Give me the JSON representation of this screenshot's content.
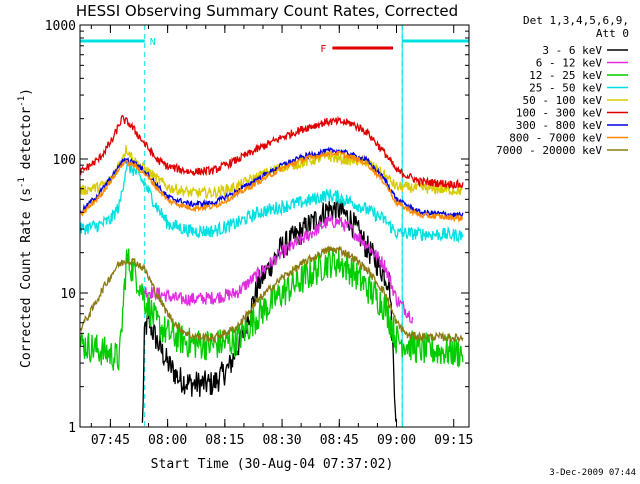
{
  "chart_data": {
    "type": "line",
    "title": "HESSI Observing Summary Count Rates, Corrected",
    "xlabel": "Start Time (30-Aug-04 07:37:02)",
    "ylabel_main": "Corrected Count Rate (s",
    "ylabel_exp1": "-1",
    "ylabel_mid": " detector",
    "ylabel_exp2": "-1",
    "ylabel_end": ")",
    "yscale": "log",
    "ylim": [
      1,
      1000
    ],
    "xlim": [
      7.6172,
      9.3167
    ],
    "yticks": [
      "1",
      "10",
      "100",
      "1000"
    ],
    "xticks": [
      "07:45",
      "08:00",
      "08:15",
      "08:30",
      "08:45",
      "09:00",
      "09:15"
    ],
    "legend_header": [
      "Det 1,3,4,5,6,9,",
      "Att 0"
    ],
    "footer_date": "3-Dec-2009 07:44",
    "night_label": "N",
    "flare_label": "F",
    "night_intervals": [
      [
        7.6172,
        7.9
      ],
      [
        9.025,
        9.3167
      ]
    ],
    "flare_interval": [
      8.72,
      8.985
    ],
    "series": [
      {
        "name": "3 - 6 keV",
        "color": "#000000",
        "noise": 0.1,
        "points": [
          [
            7.89,
            1.0
          ],
          [
            7.9,
            5.5
          ],
          [
            7.92,
            6.0
          ],
          [
            7.95,
            4.5
          ],
          [
            8.0,
            3.0
          ],
          [
            8.05,
            2.3
          ],
          [
            8.1,
            2.1
          ],
          [
            8.2,
            2.1
          ],
          [
            8.27,
            2.8
          ],
          [
            8.33,
            5
          ],
          [
            8.4,
            12
          ],
          [
            8.5,
            22
          ],
          [
            8.6,
            30
          ],
          [
            8.7,
            42
          ],
          [
            8.75,
            42
          ],
          [
            8.8,
            35
          ],
          [
            8.87,
            22
          ],
          [
            8.97,
            12
          ],
          [
            9.0,
            1.0
          ]
        ]
      },
      {
        "name": "6 - 12 keV",
        "color": "#e02de0",
        "noise": 0.05,
        "points": [
          [
            7.89,
            10.5
          ],
          [
            7.95,
            10.0
          ],
          [
            8.0,
            9.5
          ],
          [
            8.05,
            9.0
          ],
          [
            8.1,
            9.0
          ],
          [
            8.2,
            9.2
          ],
          [
            8.3,
            10
          ],
          [
            8.4,
            14
          ],
          [
            8.5,
            20
          ],
          [
            8.6,
            26
          ],
          [
            8.7,
            34
          ],
          [
            8.75,
            34
          ],
          [
            8.8,
            30
          ],
          [
            8.87,
            23
          ],
          [
            8.95,
            16
          ],
          [
            9.0,
            9
          ],
          [
            9.07,
            6.5
          ]
        ]
      },
      {
        "name": "12 - 25 keV",
        "color": "#00cc00",
        "noise": 0.12,
        "points": [
          [
            7.62,
            4.2
          ],
          [
            7.75,
            3.5
          ],
          [
            7.79,
            3.2
          ],
          [
            7.82,
            18
          ],
          [
            7.86,
            14
          ],
          [
            7.9,
            9
          ],
          [
            7.95,
            6
          ],
          [
            8.0,
            5
          ],
          [
            8.1,
            4.2
          ],
          [
            8.2,
            4.1
          ],
          [
            8.3,
            4.4
          ],
          [
            8.4,
            7
          ],
          [
            8.5,
            10
          ],
          [
            8.6,
            13
          ],
          [
            8.7,
            17
          ],
          [
            8.75,
            17
          ],
          [
            8.8,
            15
          ],
          [
            8.87,
            11
          ],
          [
            8.95,
            8
          ],
          [
            9.0,
            4.5
          ],
          [
            9.1,
            3.8
          ],
          [
            9.29,
            3.6
          ]
        ]
      },
      {
        "name": "25 - 50 keV",
        "color": "#00e0e0",
        "noise": 0.05,
        "points": [
          [
            7.62,
            30
          ],
          [
            7.7,
            32
          ],
          [
            7.75,
            35
          ],
          [
            7.79,
            45
          ],
          [
            7.82,
            90
          ],
          [
            7.86,
            80
          ],
          [
            7.9,
            65
          ],
          [
            7.95,
            45
          ],
          [
            8.0,
            33
          ],
          [
            8.1,
            29
          ],
          [
            8.2,
            29
          ],
          [
            8.3,
            33
          ],
          [
            8.4,
            40
          ],
          [
            8.5,
            44
          ],
          [
            8.6,
            48
          ],
          [
            8.7,
            54
          ],
          [
            8.75,
            52
          ],
          [
            8.8,
            48
          ],
          [
            8.87,
            42
          ],
          [
            8.95,
            35
          ],
          [
            9.0,
            28
          ],
          [
            9.29,
            27
          ]
        ]
      },
      {
        "name": "50 - 100 keV",
        "color": "#d8cc00",
        "noise": 0.04,
        "points": [
          [
            7.62,
            58
          ],
          [
            7.7,
            62
          ],
          [
            7.75,
            68
          ],
          [
            7.78,
            85
          ],
          [
            7.82,
            120
          ],
          [
            7.86,
            95
          ],
          [
            7.9,
            85
          ],
          [
            7.95,
            72
          ],
          [
            8.0,
            62
          ],
          [
            8.1,
            56
          ],
          [
            8.2,
            56
          ],
          [
            8.3,
            62
          ],
          [
            8.4,
            75
          ],
          [
            8.5,
            87
          ],
          [
            8.6,
            95
          ],
          [
            8.7,
            105
          ],
          [
            8.75,
            100
          ],
          [
            8.8,
            98
          ],
          [
            8.87,
            96
          ],
          [
            8.95,
            75
          ],
          [
            9.0,
            62
          ],
          [
            9.29,
            58
          ]
        ]
      },
      {
        "name": "100 - 300 keV",
        "color": "#e00000",
        "noise": 0.03,
        "points": [
          [
            7.62,
            80
          ],
          [
            7.7,
            100
          ],
          [
            7.76,
            140
          ],
          [
            7.8,
            200
          ],
          [
            7.83,
            185
          ],
          [
            7.86,
            160
          ],
          [
            7.9,
            130
          ],
          [
            7.95,
            100
          ],
          [
            8.0,
            88
          ],
          [
            8.1,
            80
          ],
          [
            8.2,
            82
          ],
          [
            8.3,
            98
          ],
          [
            8.4,
            120
          ],
          [
            8.5,
            145
          ],
          [
            8.6,
            170
          ],
          [
            8.7,
            190
          ],
          [
            8.75,
            190
          ],
          [
            8.8,
            185
          ],
          [
            8.87,
            160
          ],
          [
            8.95,
            110
          ],
          [
            9.0,
            82
          ],
          [
            9.1,
            68
          ],
          [
            9.29,
            64
          ]
        ]
      },
      {
        "name": "300 - 800 keV",
        "color": "#0000dd",
        "noise": 0.02,
        "points": [
          [
            7.62,
            40
          ],
          [
            7.7,
            55
          ],
          [
            7.76,
            75
          ],
          [
            7.81,
            100
          ],
          [
            7.85,
            95
          ],
          [
            7.9,
            82
          ],
          [
            7.95,
            65
          ],
          [
            8.0,
            52
          ],
          [
            8.1,
            46
          ],
          [
            8.2,
            47
          ],
          [
            8.3,
            57
          ],
          [
            8.4,
            72
          ],
          [
            8.5,
            90
          ],
          [
            8.6,
            105
          ],
          [
            8.7,
            115
          ],
          [
            8.75,
            115
          ],
          [
            8.8,
            108
          ],
          [
            8.87,
            98
          ],
          [
            8.95,
            70
          ],
          [
            9.0,
            50
          ],
          [
            9.1,
            40
          ],
          [
            9.29,
            38
          ]
        ]
      },
      {
        "name": "800 - 7000 keV",
        "color": "#ff8800",
        "noise": 0.02,
        "points": [
          [
            7.62,
            38
          ],
          [
            7.7,
            52
          ],
          [
            7.76,
            72
          ],
          [
            7.81,
            95
          ],
          [
            7.85,
            91
          ],
          [
            7.9,
            78
          ],
          [
            7.95,
            62
          ],
          [
            8.0,
            49
          ],
          [
            8.1,
            43
          ],
          [
            8.2,
            44
          ],
          [
            8.3,
            54
          ],
          [
            8.4,
            68
          ],
          [
            8.5,
            85
          ],
          [
            8.6,
            100
          ],
          [
            8.7,
            110
          ],
          [
            8.75,
            110
          ],
          [
            8.8,
            103
          ],
          [
            8.87,
            93
          ],
          [
            8.95,
            66
          ],
          [
            9.0,
            47
          ],
          [
            9.1,
            38
          ],
          [
            9.29,
            36
          ]
        ]
      },
      {
        "name": "7000 - 20000 keV",
        "color": "#8a7a10",
        "noise": 0.03,
        "points": [
          [
            7.62,
            5.5
          ],
          [
            7.66,
            7
          ],
          [
            7.72,
            11
          ],
          [
            7.78,
            16
          ],
          [
            7.82,
            17.5
          ],
          [
            7.86,
            17
          ],
          [
            7.9,
            15
          ],
          [
            7.95,
            10
          ],
          [
            8.0,
            7
          ],
          [
            8.05,
            5.5
          ],
          [
            8.1,
            4.8
          ],
          [
            8.2,
            4.6
          ],
          [
            8.3,
            5.5
          ],
          [
            8.4,
            9
          ],
          [
            8.5,
            13
          ],
          [
            8.6,
            17
          ],
          [
            8.7,
            21
          ],
          [
            8.75,
            21
          ],
          [
            8.8,
            19
          ],
          [
            8.87,
            15
          ],
          [
            8.95,
            10
          ],
          [
            9.0,
            6
          ],
          [
            9.05,
            4.8
          ],
          [
            9.29,
            4.6
          ]
        ]
      }
    ]
  }
}
